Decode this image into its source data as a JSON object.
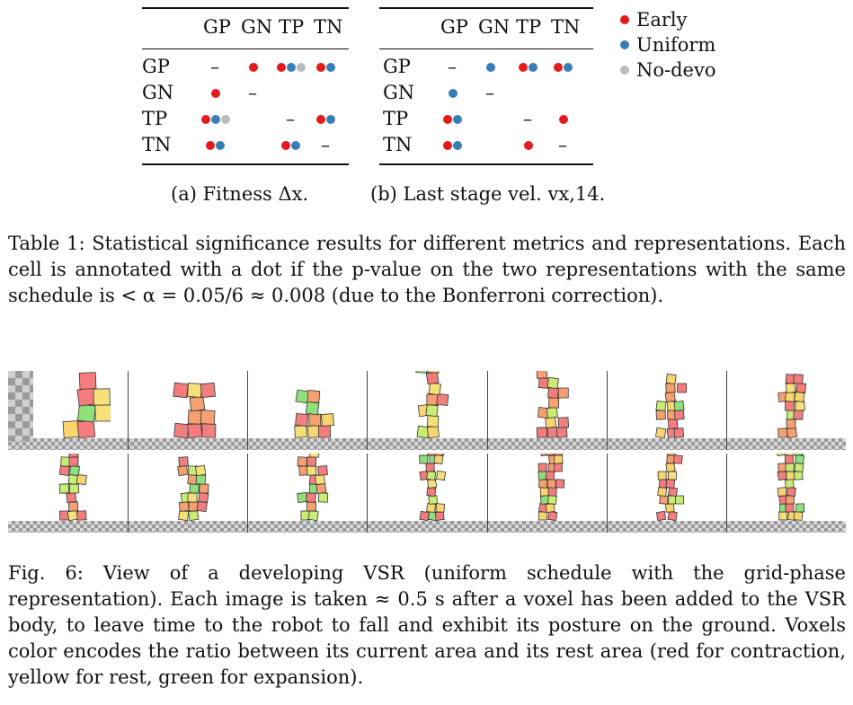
{
  "colors": {
    "early": "#e41a1c",
    "uniform": "#377eb8",
    "nodevo": "#bbbbbb"
  },
  "legend": [
    {
      "label": "Early",
      "color": "#e41a1c"
    },
    {
      "label": "Uniform",
      "color": "#377eb8"
    },
    {
      "label": "No-devo",
      "color": "#bbbbbb"
    }
  ],
  "table_a": {
    "columns": [
      "GP",
      "GN",
      "TP",
      "TN"
    ],
    "rows": [
      "GP",
      "GN",
      "TP",
      "TN"
    ],
    "cells": [
      [
        [
          "-"
        ],
        [
          "early"
        ],
        [
          "early",
          "uniform",
          "nodevo"
        ],
        [
          "early",
          "uniform"
        ]
      ],
      [
        [
          "early"
        ],
        [
          "-"
        ],
        [],
        []
      ],
      [
        [
          "early",
          "uniform",
          "nodevo"
        ],
        [],
        [
          "-"
        ],
        [
          "early",
          "uniform"
        ]
      ],
      [
        [
          "early",
          "uniform"
        ],
        [],
        [
          "early",
          "uniform"
        ],
        [
          "-"
        ]
      ]
    ],
    "caption": "(a) Fitness Δx."
  },
  "table_b": {
    "columns": [
      "GP",
      "GN",
      "TP",
      "TN"
    ],
    "rows": [
      "GP",
      "GN",
      "TP",
      "TN"
    ],
    "cells": [
      [
        [
          "-"
        ],
        [
          "uniform"
        ],
        [
          "early",
          "uniform"
        ],
        [
          "early",
          "uniform"
        ]
      ],
      [
        [
          "uniform"
        ],
        [
          "-"
        ],
        [],
        []
      ],
      [
        [
          "early",
          "uniform"
        ],
        [],
        [
          "-"
        ],
        [
          "early"
        ]
      ],
      [
        [
          "early",
          "uniform"
        ],
        [],
        [
          "early"
        ],
        [
          "-"
        ]
      ]
    ],
    "caption": "(b) Last stage vel. vx,14."
  },
  "table_caption": "Table 1: Statistical significance results for different metrics and representations. Each cell is annotated with a dot if the p-value on the two representations with the same schedule is < α = 0.05/6 ≈ 0.008 (due to the Bonferroni correction).",
  "figure_caption": "Fig. 6: View of a developing VSR (uniform schedule with the grid-phase representation). Each image is taken ≈ 0.5 s after a voxel has been added to the VSR body, to leave time to the robot to fall and exhibit its posture on the ground. Voxels color encodes the ratio between its current area and its rest area (red for contraction, yellow for rest, green for expansion)."
}
